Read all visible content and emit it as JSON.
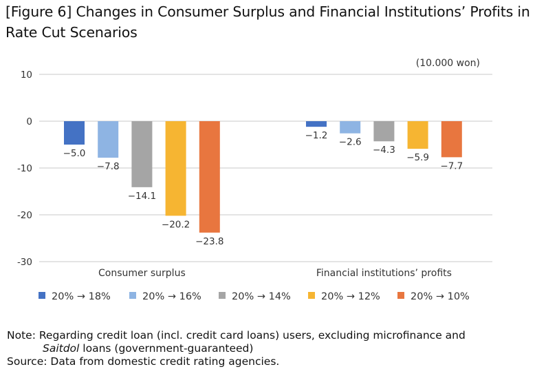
{
  "figure": {
    "title_line1": "[Figure 6] Changes in Consumer Surplus and Financial Institutions’ Profits in",
    "title_line2": "Rate Cut Scenarios"
  },
  "chart_data": {
    "type": "bar",
    "unit": "(10.000 won)",
    "categories": [
      "Consumer surplus",
      "Financial institutions’ profits"
    ],
    "series": [
      {
        "name": "20% → 18%",
        "color": "#4472c4",
        "values": [
          -5.0,
          -1.2
        ],
        "labels": [
          "-5.0",
          "-1.2"
        ]
      },
      {
        "name": "20% → 16%",
        "color": "#8eb4e3",
        "values": [
          -7.8,
          -2.6
        ],
        "labels": [
          "-7.8",
          "-2.6"
        ]
      },
      {
        "name": "20% → 14%",
        "color": "#a5a5a5",
        "values": [
          -14.1,
          -4.3
        ],
        "labels": [
          "-14.1",
          "-4.3"
        ]
      },
      {
        "name": "20% → 12%",
        "color": "#f6b532",
        "values": [
          -20.2,
          -5.9
        ],
        "labels": [
          "-20.2",
          "-5.9"
        ]
      },
      {
        "name": "20% → 10%",
        "color": "#e8763f",
        "values": [
          -23.8,
          -7.7
        ],
        "labels": [
          "-23.8",
          "-7.7"
        ]
      }
    ],
    "yticks": [
      10,
      0,
      -10,
      -20,
      -30
    ],
    "ylim": [
      -30,
      10
    ],
    "grid": true,
    "legend_position": "bottom"
  },
  "notes": {
    "note_part1": "Note: Regarding credit loan (incl. credit card loans) users, excluding microfinance and",
    "note_italic": "Saitdol",
    "note_part2": " loans (government-guaranteed)",
    "source": "Source: Data from domestic credit rating agencies."
  }
}
